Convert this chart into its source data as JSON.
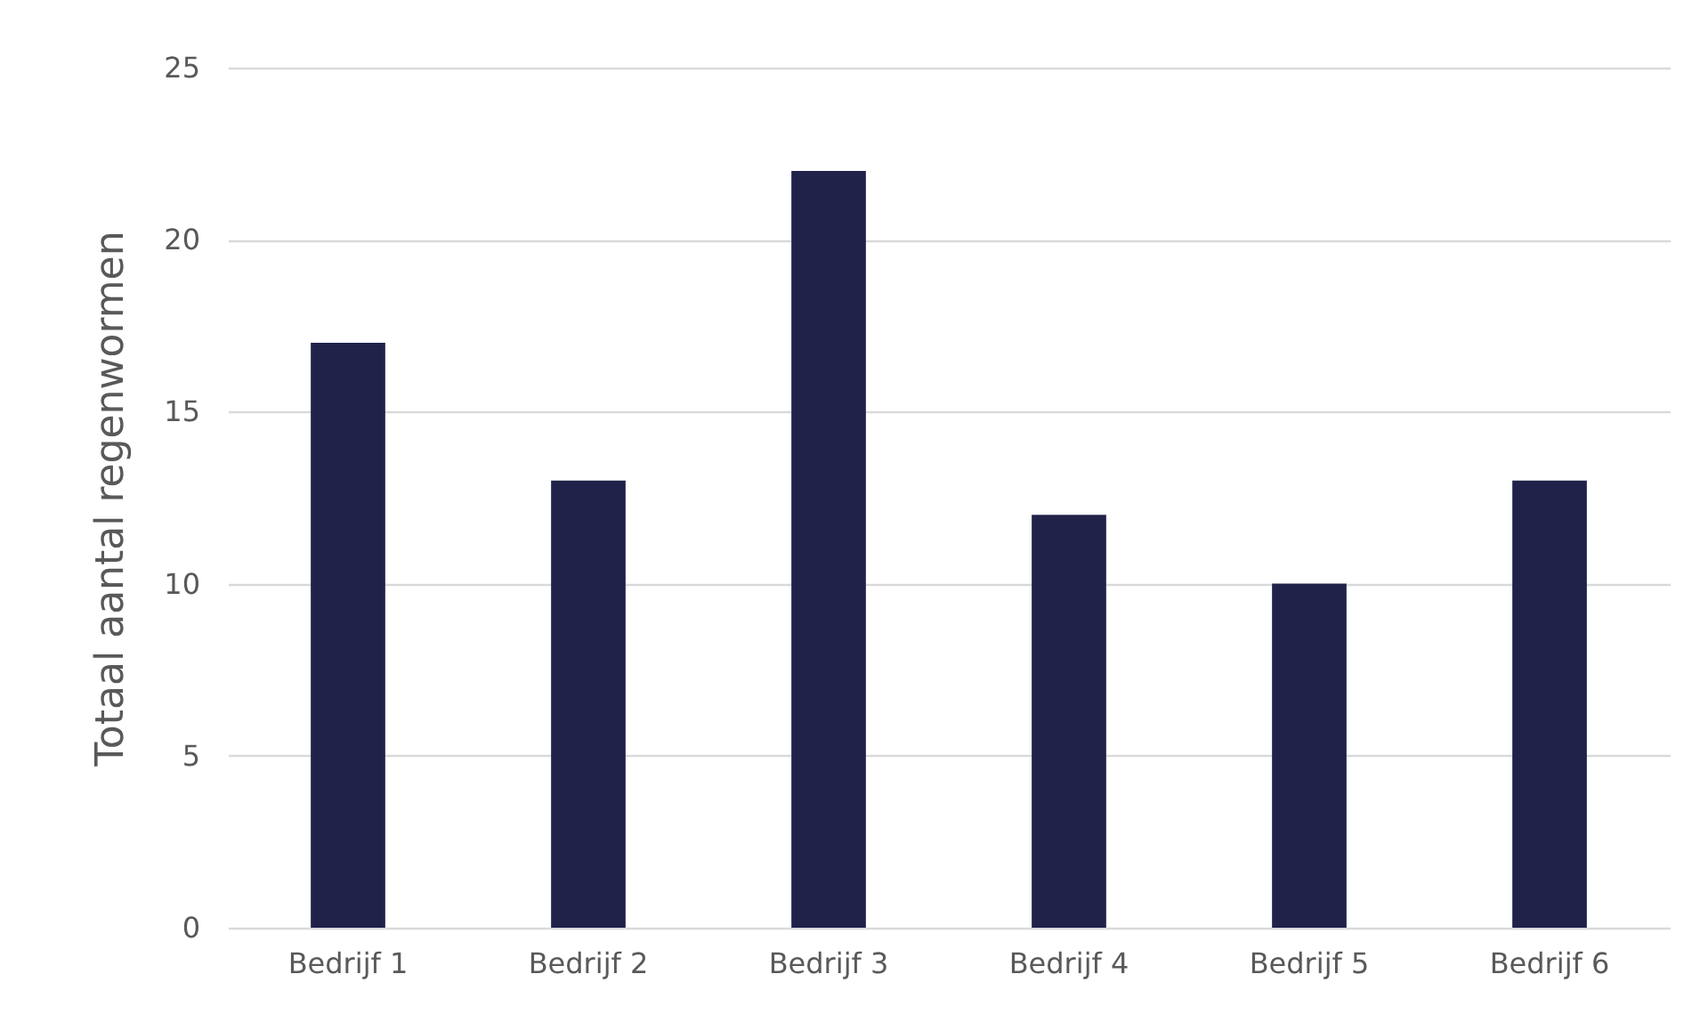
{
  "chart_data": {
    "type": "bar",
    "ylabel": "Totaal aantal regenwormen",
    "categories": [
      "Bedrijf 1",
      "Bedrijf 2",
      "Bedrijf 3",
      "Bedrijf 4",
      "Bedrijf 5",
      "Bedrijf 6"
    ],
    "values": [
      17,
      13,
      22,
      12,
      10,
      13
    ],
    "color": "#20224a",
    "ylim": [
      0,
      25
    ],
    "yticks": [
      0,
      5,
      10,
      15,
      20,
      25
    ],
    "grid": "y"
  }
}
